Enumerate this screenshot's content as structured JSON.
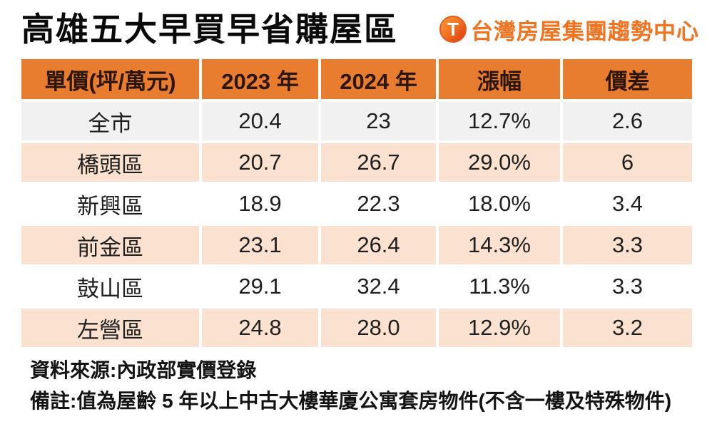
{
  "page": {
    "title": "高雄五大早買早省購屋區"
  },
  "logo": {
    "icon_letter": "T",
    "text": "台灣房屋集團趨勢中心",
    "color": "#F1731F"
  },
  "chart_data": {
    "type": "table",
    "title": "高雄五大早買早省購屋區",
    "unit_note": "單價(坪/萬元)",
    "columns": [
      "單價(坪/萬元)",
      "2023 年",
      "2024 年",
      "漲幅",
      "價差"
    ],
    "rows": [
      {
        "region": "全市",
        "v2023": "20.4",
        "v2024": "23",
        "change": "12.7%",
        "diff": "2.6"
      },
      {
        "region": "橋頭區",
        "v2023": "20.7",
        "v2024": "26.7",
        "change": "29.0%",
        "diff": "6"
      },
      {
        "region": "新興區",
        "v2023": "18.9",
        "v2024": "22.3",
        "change": "18.0%",
        "diff": "3.4"
      },
      {
        "region": "前金區",
        "v2023": "23.1",
        "v2024": "26.4",
        "change": "14.3%",
        "diff": "3.3"
      },
      {
        "region": "鼓山區",
        "v2023": "29.1",
        "v2024": "32.4",
        "change": "11.3%",
        "diff": "3.3"
      },
      {
        "region": "左營區",
        "v2023": "24.8",
        "v2024": "28.0",
        "change": "12.9%",
        "diff": "3.2"
      }
    ],
    "layout": {
      "header_bg": "#E87C2F",
      "banded_row_bg": "#FBE2D0",
      "first_row_bg": "#F1F1F1",
      "grid": "white 4px cell spacing, no outer border"
    }
  },
  "notes": {
    "source": "資料來源:內政部實價登錄",
    "remark": "備註:值為屋齡 5 年以上中古大樓華廈公寓套房物件(不含一樓及特殊物件)"
  }
}
